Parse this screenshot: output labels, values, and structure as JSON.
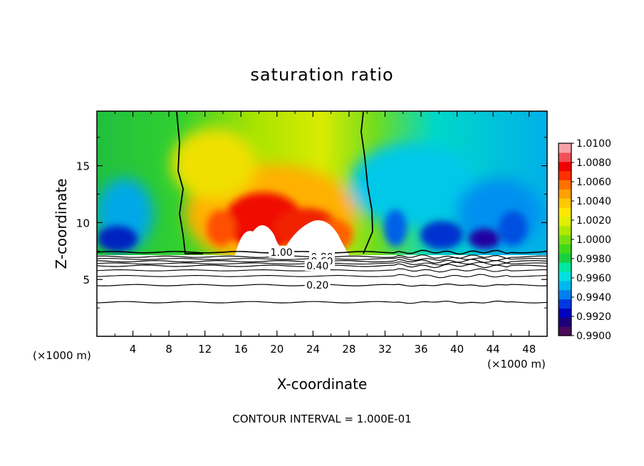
{
  "chart_data": {
    "type": "heatmap",
    "title": "saturation ratio",
    "xlabel": "X-coordinate",
    "ylabel": "Z-coordinate",
    "x_unit": "(×1000 m)",
    "footer": "CONTOUR INTERVAL = 1.000E-01",
    "xlim": [
      0,
      50
    ],
    "ylim": [
      0,
      19.8
    ],
    "x_ticks": [
      "4",
      "8",
      "12",
      "16",
      "20",
      "24",
      "28",
      "32",
      "36",
      "40",
      "44",
      "48"
    ],
    "y_ticks": [
      "5",
      "10",
      "15"
    ],
    "colorbar": {
      "min": 0.99,
      "max": 1.01,
      "labels": [
        "1.0100",
        "1.0080",
        "1.0060",
        "1.0040",
        "1.0020",
        "1.0000",
        "0.9980",
        "0.9960",
        "0.9940",
        "0.9920",
        "0.9900"
      ],
      "colors": [
        "#4a0a5a",
        "#1c007a",
        "#0000c0",
        "#0038e0",
        "#0080f0",
        "#00b8f0",
        "#00e0e0",
        "#00e8a0",
        "#18d040",
        "#40d818",
        "#78e010",
        "#b0e800",
        "#e0f000",
        "#ffe800",
        "#ffc800",
        "#ffa000",
        "#ff7000",
        "#ff3000",
        "#f00000",
        "#f05058",
        "#f8a0a8"
      ]
    },
    "contour_lines": [
      {
        "label": "1.00",
        "z": 7.4
      },
      {
        "label": "0.80",
        "z": 7.0
      },
      {
        "label": "0.60",
        "z": 6.6
      },
      {
        "label": "0.40",
        "z": 6.2
      },
      {
        "label": "0.20",
        "z": 4.5
      },
      {
        "label": "",
        "z": 3.0
      }
    ]
  }
}
